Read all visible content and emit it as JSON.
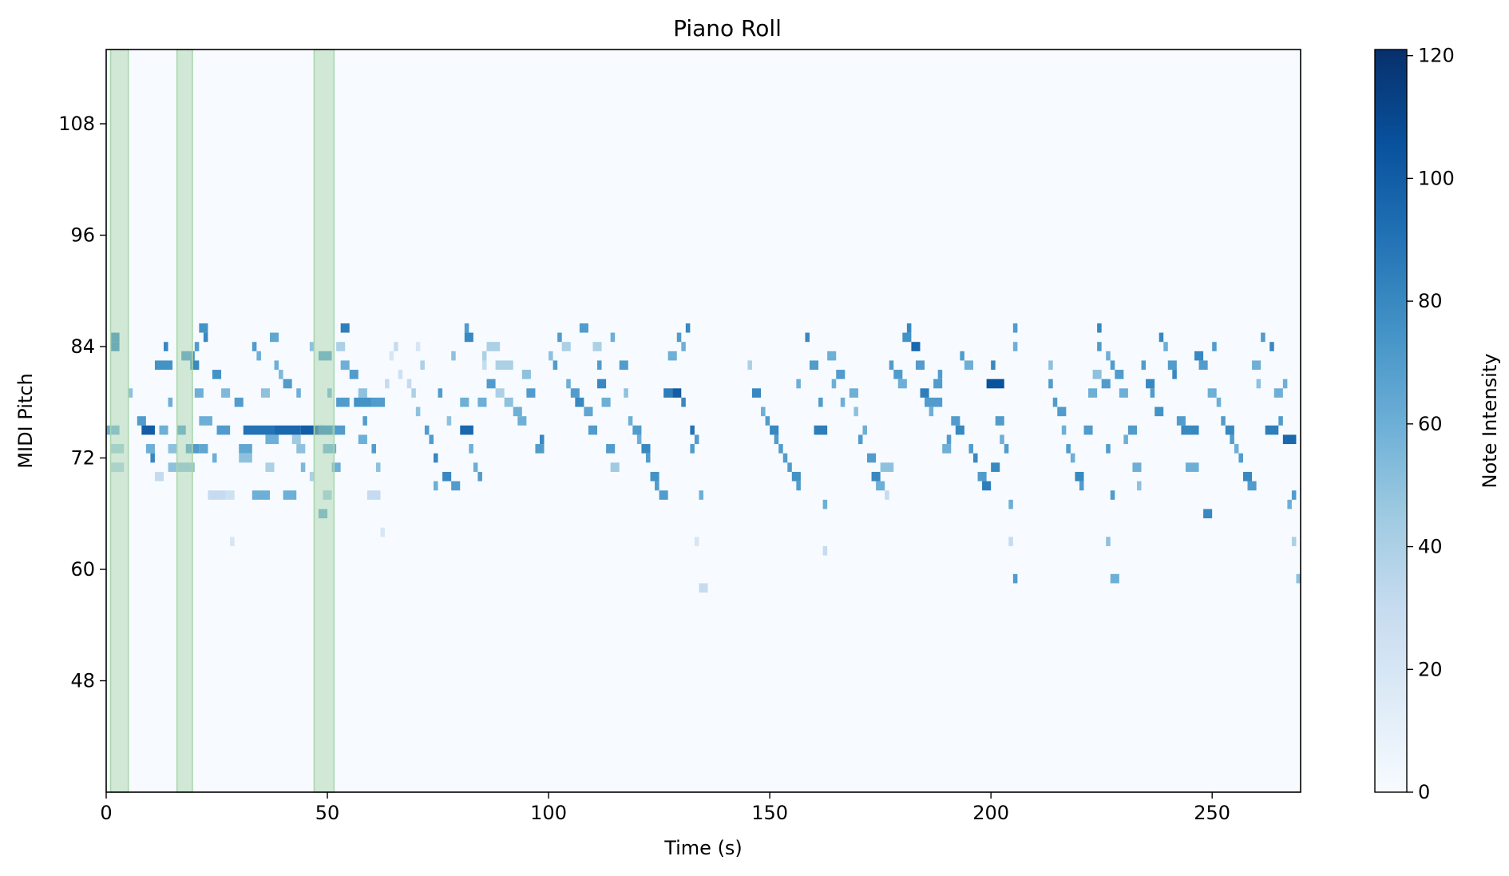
{
  "chart_data": {
    "type": "heatmap",
    "title": "Piano Roll",
    "xlabel": "Time (s)",
    "ylabel": "MIDI Pitch",
    "xlim": [
      0,
      270
    ],
    "ylim": [
      36,
      116
    ],
    "xticks": [
      0,
      50,
      100,
      150,
      200,
      250
    ],
    "yticks": [
      48,
      60,
      72,
      84,
      96,
      108
    ],
    "colorbar": {
      "label": "Note Intensity",
      "range": [
        0,
        121
      ],
      "ticks": [
        0,
        20,
        40,
        60,
        80,
        100,
        120
      ],
      "colormap": "Blues",
      "colors": [
        "#f7fbff",
        "#deebf7",
        "#c6dbef",
        "#9ecae1",
        "#6baed6",
        "#4292c6",
        "#2171b5",
        "#08519c",
        "#08306b"
      ]
    },
    "highlight_color": "#a9d5ac",
    "highlights": [
      [
        1,
        5
      ],
      [
        16,
        19.5
      ],
      [
        47,
        51.5
      ]
    ],
    "notes": [
      [
        1,
        85,
        2,
        82
      ],
      [
        1,
        84,
        2,
        83
      ],
      [
        0,
        75,
        3,
        60
      ],
      [
        1,
        73,
        3,
        45
      ],
      [
        1,
        71,
        3,
        40
      ],
      [
        5,
        79,
        1,
        50
      ],
      [
        7,
        76,
        2,
        70
      ],
      [
        8,
        75,
        3,
        100
      ],
      [
        9,
        73,
        2,
        60
      ],
      [
        10,
        72,
        1,
        80
      ],
      [
        11,
        70,
        2,
        30
      ],
      [
        12,
        75,
        2,
        60
      ],
      [
        13,
        84,
        1,
        80
      ],
      [
        11,
        82,
        4,
        75
      ],
      [
        14,
        73,
        2,
        50
      ],
      [
        14,
        78,
        1,
        60
      ],
      [
        14,
        71,
        2,
        50
      ],
      [
        16,
        75,
        2,
        70
      ],
      [
        17,
        83,
        3,
        75
      ],
      [
        18,
        73,
        3,
        70
      ],
      [
        19,
        82,
        2,
        80
      ],
      [
        16,
        71,
        4,
        50
      ],
      [
        20,
        84,
        1,
        70
      ],
      [
        20,
        79,
        2,
        60
      ],
      [
        21,
        86,
        2,
        75
      ],
      [
        21,
        76,
        3,
        60
      ],
      [
        21,
        73,
        2,
        65
      ],
      [
        22,
        85,
        1,
        80
      ],
      [
        24,
        72,
        1,
        60
      ],
      [
        25,
        75,
        3,
        70
      ],
      [
        24,
        81,
        2,
        75
      ],
      [
        26,
        79,
        2,
        55
      ],
      [
        23,
        68,
        4,
        30
      ],
      [
        27,
        68,
        2,
        25
      ],
      [
        29,
        78,
        2,
        70
      ],
      [
        28,
        63,
        1,
        20
      ],
      [
        30,
        72,
        3,
        50
      ],
      [
        30,
        73,
        3,
        65
      ],
      [
        31,
        75,
        7,
        90
      ],
      [
        33,
        84,
        1,
        70
      ],
      [
        34,
        83,
        1,
        60
      ],
      [
        35,
        79,
        2,
        50
      ],
      [
        36,
        74,
        3,
        60
      ],
      [
        36,
        71,
        2,
        40
      ],
      [
        37,
        85,
        2,
        65
      ],
      [
        33,
        68,
        4,
        60
      ],
      [
        38,
        75,
        6,
        95
      ],
      [
        38,
        82,
        1,
        60
      ],
      [
        39,
        81,
        1,
        55
      ],
      [
        40,
        80,
        2,
        70
      ],
      [
        40,
        68,
        3,
        60
      ],
      [
        42,
        74,
        2,
        45
      ],
      [
        43,
        79,
        1,
        60
      ],
      [
        43,
        73,
        2,
        50
      ],
      [
        44,
        75,
        5,
        100
      ],
      [
        44,
        71,
        1,
        55
      ],
      [
        46,
        84,
        1,
        50
      ],
      [
        46,
        70,
        1,
        40
      ],
      [
        48,
        75,
        4,
        85
      ],
      [
        48,
        83,
        3,
        70
      ],
      [
        48,
        66,
        2,
        65
      ],
      [
        49,
        73,
        3,
        60
      ],
      [
        49,
        68,
        2,
        45
      ],
      [
        50,
        79,
        1,
        60
      ],
      [
        51,
        75,
        3,
        70
      ],
      [
        51,
        71,
        2,
        60
      ],
      [
        52,
        84,
        2,
        40
      ],
      [
        53,
        82,
        2,
        60
      ],
      [
        53,
        86,
        2,
        85
      ],
      [
        52,
        78,
        3,
        70
      ],
      [
        55,
        81,
        2,
        70
      ],
      [
        56,
        78,
        4,
        75
      ],
      [
        57,
        74,
        2,
        60
      ],
      [
        57,
        79,
        2,
        50
      ],
      [
        58,
        76,
        1,
        70
      ],
      [
        59,
        68,
        3,
        30
      ],
      [
        60,
        73,
        1,
        70
      ],
      [
        60,
        78,
        3,
        70
      ],
      [
        61,
        71,
        1,
        50
      ],
      [
        62,
        64,
        1,
        20
      ],
      [
        63,
        80,
        1,
        30
      ],
      [
        64,
        83,
        1,
        20
      ],
      [
        65,
        84,
        1,
        30
      ],
      [
        66,
        81,
        1,
        25
      ],
      [
        68,
        80,
        1,
        30
      ],
      [
        69,
        79,
        1,
        40
      ],
      [
        70,
        77,
        1,
        50
      ],
      [
        70,
        84,
        1,
        20
      ],
      [
        71,
        82,
        1,
        40
      ],
      [
        72,
        75,
        1,
        70
      ],
      [
        73,
        74,
        1,
        70
      ],
      [
        74,
        72,
        1,
        80
      ],
      [
        74,
        69,
        1,
        60
      ],
      [
        75,
        79,
        1,
        70
      ],
      [
        76,
        70,
        2,
        80
      ],
      [
        77,
        76,
        1,
        50
      ],
      [
        78,
        69,
        2,
        70
      ],
      [
        78,
        83,
        1,
        50
      ],
      [
        80,
        75,
        3,
        95
      ],
      [
        80,
        78,
        2,
        60
      ],
      [
        81,
        86,
        1,
        70
      ],
      [
        81,
        85,
        2,
        80
      ],
      [
        82,
        73,
        1,
        60
      ],
      [
        83,
        71,
        1,
        60
      ],
      [
        84,
        70,
        1,
        70
      ],
      [
        84,
        78,
        2,
        60
      ],
      [
        85,
        83,
        1,
        40
      ],
      [
        85,
        82,
        1,
        30
      ],
      [
        86,
        84,
        3,
        40
      ],
      [
        86,
        80,
        2,
        70
      ],
      [
        88,
        82,
        4,
        40
      ],
      [
        88,
        79,
        2,
        40
      ],
      [
        90,
        78,
        2,
        50
      ],
      [
        92,
        77,
        2,
        60
      ],
      [
        93,
        76,
        2,
        60
      ],
      [
        94,
        81,
        2,
        50
      ],
      [
        95,
        79,
        2,
        70
      ],
      [
        97,
        73,
        2,
        70
      ],
      [
        98,
        74,
        1,
        80
      ],
      [
        100,
        83,
        1,
        50
      ],
      [
        101,
        82,
        1,
        70
      ],
      [
        102,
        85,
        1,
        70
      ],
      [
        103,
        84,
        2,
        40
      ],
      [
        104,
        80,
        1,
        60
      ],
      [
        105,
        79,
        2,
        70
      ],
      [
        106,
        78,
        2,
        80
      ],
      [
        107,
        86,
        2,
        70
      ],
      [
        108,
        77,
        2,
        65
      ],
      [
        109,
        75,
        2,
        70
      ],
      [
        110,
        84,
        2,
        40
      ],
      [
        111,
        82,
        1,
        70
      ],
      [
        111,
        80,
        2,
        80
      ],
      [
        112,
        78,
        2,
        60
      ],
      [
        113,
        73,
        2,
        70
      ],
      [
        114,
        71,
        2,
        45
      ],
      [
        114,
        85,
        1,
        60
      ],
      [
        116,
        82,
        2,
        70
      ],
      [
        117,
        79,
        1,
        50
      ],
      [
        118,
        76,
        1,
        60
      ],
      [
        119,
        75,
        2,
        70
      ],
      [
        120,
        74,
        1,
        60
      ],
      [
        121,
        73,
        2,
        80
      ],
      [
        122,
        72,
        1,
        70
      ],
      [
        123,
        70,
        2,
        75
      ],
      [
        124,
        69,
        1,
        70
      ],
      [
        125,
        68,
        2,
        70
      ],
      [
        126,
        79,
        2,
        85
      ],
      [
        127,
        83,
        2,
        60
      ],
      [
        128,
        79,
        2,
        100
      ],
      [
        129,
        85,
        1,
        70
      ],
      [
        130,
        84,
        1,
        60
      ],
      [
        130,
        78,
        1,
        80
      ],
      [
        131,
        86,
        1,
        80
      ],
      [
        132,
        75,
        1,
        90
      ],
      [
        132,
        73,
        1,
        70
      ],
      [
        133,
        74,
        1,
        70
      ],
      [
        134,
        68,
        1,
        60
      ],
      [
        134,
        58,
        2,
        30
      ],
      [
        133,
        63,
        1,
        20
      ],
      [
        145,
        82,
        1,
        40
      ],
      [
        146,
        79,
        2,
        80
      ],
      [
        148,
        77,
        1,
        60
      ],
      [
        149,
        76,
        1,
        70
      ],
      [
        150,
        75,
        2,
        80
      ],
      [
        151,
        74,
        1,
        70
      ],
      [
        152,
        73,
        1,
        70
      ],
      [
        153,
        72,
        1,
        70
      ],
      [
        154,
        71,
        1,
        70
      ],
      [
        155,
        70,
        2,
        75
      ],
      [
        156,
        69,
        1,
        70
      ],
      [
        156,
        80,
        1,
        60
      ],
      [
        158,
        85,
        1,
        80
      ],
      [
        159,
        82,
        2,
        70
      ],
      [
        160,
        75,
        3,
        85
      ],
      [
        161,
        78,
        1,
        70
      ],
      [
        162,
        67,
        1,
        60
      ],
      [
        162,
        62,
        1,
        30
      ],
      [
        163,
        83,
        2,
        60
      ],
      [
        164,
        80,
        1,
        60
      ],
      [
        165,
        81,
        2,
        70
      ],
      [
        166,
        78,
        1,
        60
      ],
      [
        168,
        79,
        2,
        60
      ],
      [
        169,
        77,
        1,
        50
      ],
      [
        170,
        74,
        1,
        70
      ],
      [
        171,
        75,
        1,
        60
      ],
      [
        172,
        72,
        2,
        70
      ],
      [
        173,
        70,
        2,
        80
      ],
      [
        174,
        69,
        2,
        60
      ],
      [
        175,
        71,
        3,
        50
      ],
      [
        176,
        68,
        1,
        30
      ],
      [
        177,
        82,
        1,
        70
      ],
      [
        178,
        81,
        2,
        70
      ],
      [
        179,
        80,
        2,
        60
      ],
      [
        180,
        85,
        2,
        75
      ],
      [
        181,
        86,
        1,
        80
      ],
      [
        182,
        84,
        2,
        95
      ],
      [
        183,
        82,
        2,
        70
      ],
      [
        184,
        79,
        2,
        85
      ],
      [
        185,
        78,
        4,
        70
      ],
      [
        186,
        77,
        1,
        60
      ],
      [
        187,
        80,
        2,
        70
      ],
      [
        188,
        81,
        1,
        70
      ],
      [
        189,
        73,
        2,
        60
      ],
      [
        190,
        74,
        1,
        70
      ],
      [
        191,
        76,
        2,
        70
      ],
      [
        192,
        75,
        2,
        80
      ],
      [
        193,
        83,
        1,
        70
      ],
      [
        194,
        82,
        2,
        60
      ],
      [
        195,
        73,
        1,
        70
      ],
      [
        196,
        72,
        1,
        80
      ],
      [
        197,
        70,
        2,
        70
      ],
      [
        198,
        69,
        2,
        85
      ],
      [
        199,
        80,
        4,
        105
      ],
      [
        200,
        82,
        1,
        80
      ],
      [
        200,
        71,
        2,
        80
      ],
      [
        201,
        76,
        2,
        70
      ],
      [
        202,
        74,
        1,
        60
      ],
      [
        203,
        73,
        1,
        70
      ],
      [
        204,
        67,
        1,
        60
      ],
      [
        205,
        86,
        1,
        70
      ],
      [
        205,
        84,
        1,
        60
      ],
      [
        204,
        63,
        1,
        30
      ],
      [
        205,
        59,
        1,
        70
      ],
      [
        213,
        82,
        1,
        50
      ],
      [
        213,
        80,
        1,
        70
      ],
      [
        214,
        78,
        1,
        70
      ],
      [
        215,
        77,
        2,
        70
      ],
      [
        216,
        75,
        1,
        60
      ],
      [
        217,
        73,
        1,
        70
      ],
      [
        218,
        72,
        1,
        60
      ],
      [
        219,
        70,
        2,
        80
      ],
      [
        220,
        69,
        1,
        70
      ],
      [
        221,
        75,
        2,
        70
      ],
      [
        222,
        79,
        2,
        60
      ],
      [
        223,
        81,
        2,
        50
      ],
      [
        224,
        86,
        1,
        80
      ],
      [
        224,
        84,
        1,
        70
      ],
      [
        225,
        80,
        2,
        70
      ],
      [
        226,
        83,
        1,
        60
      ],
      [
        227,
        82,
        1,
        70
      ],
      [
        226,
        73,
        1,
        70
      ],
      [
        227,
        68,
        1,
        70
      ],
      [
        227,
        59,
        2,
        60
      ],
      [
        226,
        63,
        1,
        50
      ],
      [
        228,
        81,
        2,
        70
      ],
      [
        229,
        79,
        2,
        60
      ],
      [
        230,
        74,
        1,
        60
      ],
      [
        231,
        75,
        2,
        70
      ],
      [
        232,
        71,
        2,
        60
      ],
      [
        233,
        69,
        1,
        50
      ],
      [
        234,
        82,
        1,
        70
      ],
      [
        235,
        80,
        2,
        80
      ],
      [
        236,
        79,
        1,
        70
      ],
      [
        237,
        77,
        2,
        75
      ],
      [
        238,
        85,
        1,
        80
      ],
      [
        239,
        84,
        1,
        60
      ],
      [
        240,
        82,
        2,
        70
      ],
      [
        241,
        81,
        1,
        80
      ],
      [
        242,
        76,
        2,
        70
      ],
      [
        243,
        75,
        4,
        80
      ],
      [
        244,
        71,
        3,
        60
      ],
      [
        246,
        83,
        2,
        80
      ],
      [
        247,
        82,
        2,
        70
      ],
      [
        248,
        66,
        2,
        80
      ],
      [
        249,
        79,
        2,
        60
      ],
      [
        250,
        84,
        1,
        70
      ],
      [
        251,
        78,
        1,
        60
      ],
      [
        252,
        76,
        1,
        70
      ],
      [
        253,
        75,
        2,
        80
      ],
      [
        254,
        74,
        1,
        70
      ],
      [
        255,
        73,
        1,
        60
      ],
      [
        256,
        72,
        1,
        70
      ],
      [
        257,
        70,
        2,
        80
      ],
      [
        258,
        69,
        2,
        70
      ],
      [
        259,
        82,
        2,
        60
      ],
      [
        260,
        80,
        1,
        50
      ],
      [
        261,
        85,
        1,
        70
      ],
      [
        262,
        75,
        3,
        85
      ],
      [
        263,
        84,
        1,
        80
      ],
      [
        264,
        79,
        2,
        60
      ],
      [
        265,
        76,
        1,
        70
      ],
      [
        266,
        80,
        1,
        60
      ],
      [
        266,
        74,
        3,
        95
      ],
      [
        267,
        67,
        1,
        60
      ],
      [
        268,
        68,
        1,
        70
      ],
      [
        268,
        63,
        1,
        40
      ],
      [
        269,
        59,
        1,
        50
      ]
    ]
  }
}
